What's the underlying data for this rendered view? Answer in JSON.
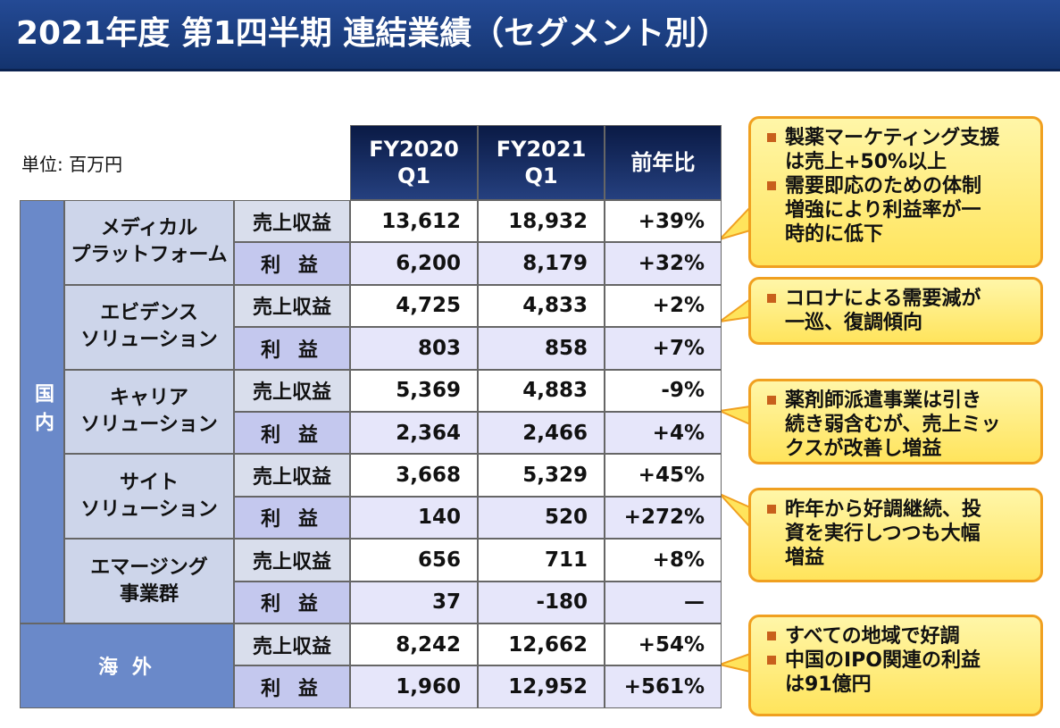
{
  "header": {
    "title": "2021年度 第1四半期 連結業績（セグメント別）"
  },
  "unit": "単位: 百万円",
  "table": {
    "headers": [
      [
        "FY2020",
        "Q1"
      ],
      [
        "FY2021",
        "Q1"
      ],
      [
        "前年比"
      ]
    ],
    "domestic": {
      "label": "国内",
      "segments": [
        {
          "name": [
            "メディカル",
            "プラットフォーム"
          ],
          "rows": [
            {
              "label": "売上収益",
              "values": [
                "13,612",
                "18,932",
                "+39%"
              ]
            },
            {
              "label": "利 益",
              "values": [
                "6,200",
                "8,179",
                "+32%"
              ]
            }
          ]
        },
        {
          "name": [
            "エビデンス",
            "ソリューション"
          ],
          "rows": [
            {
              "label": "売上収益",
              "values": [
                "4,725",
                "4,833",
                "+2%"
              ]
            },
            {
              "label": "利 益",
              "values": [
                "803",
                "858",
                "+7%"
              ]
            }
          ]
        },
        {
          "name": [
            "キャリア",
            "ソリューション"
          ],
          "rows": [
            {
              "label": "売上収益",
              "values": [
                "5,369",
                "4,883",
                "-9%"
              ]
            },
            {
              "label": "利 益",
              "values": [
                "2,364",
                "2,466",
                "+4%"
              ]
            }
          ]
        },
        {
          "name": [
            "サイト",
            "ソリューション"
          ],
          "rows": [
            {
              "label": "売上収益",
              "values": [
                "3,668",
                "5,329",
                "+45%"
              ]
            },
            {
              "label": "利 益",
              "values": [
                "140",
                "520",
                "+272%"
              ]
            }
          ]
        },
        {
          "name": [
            "エマージング",
            "事業群"
          ],
          "rows": [
            {
              "label": "売上収益",
              "values": [
                "656",
                "711",
                "+8%"
              ]
            },
            {
              "label": "利 益",
              "values": [
                "37",
                "-180",
                "—"
              ]
            }
          ]
        }
      ]
    },
    "overseas": {
      "label": "海 外",
      "rows": [
        {
          "label": "売上収益",
          "values": [
            "8,242",
            "12,662",
            "+54%"
          ]
        },
        {
          "label": "利 益",
          "values": [
            "1,960",
            "12,952",
            "+561%"
          ]
        }
      ]
    }
  },
  "callouts": [
    {
      "items": [
        [
          "製薬マーケティング支援",
          "は売上+50%以上"
        ],
        [
          "需要即応のための体制",
          "増強により利益率が一",
          "時的に低下"
        ]
      ]
    },
    {
      "items": [
        [
          "コロナによる需要減が",
          "一巡、復調傾向"
        ]
      ]
    },
    {
      "items": [
        [
          "薬剤師派遣事業は引き",
          "続き弱含むが、売上ミッ",
          "クスが改善し増益"
        ]
      ]
    },
    {
      "items": [
        [
          "昨年から好調継続、投",
          "資を実行しつつも大幅",
          "増益"
        ]
      ]
    },
    {
      "items": [
        [
          "すべての地域で好調"
        ],
        [
          "中国のIPO関連の利益",
          "は91億円"
        ]
      ]
    }
  ]
}
